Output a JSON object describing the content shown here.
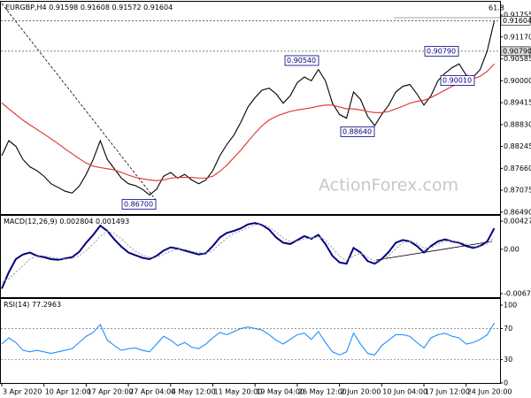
{
  "chart_data": [
    {
      "type": "line",
      "symbol": "EURGBP,H4",
      "ohlc": [
        0.91598,
        0.91608,
        0.91572,
        0.91604
      ],
      "fib_label": "61.8",
      "watermark": "ActionForex.com",
      "ylim": [
        0.8644,
        0.9211
      ],
      "yticks": [
        0.91755,
        {
          "value": 0.9117,
          "label": "0.91170"
        },
        0.90585,
        {
          "value": 0.9,
          "label": "0.90000"
        },
        0.89415,
        {
          "value": 0.8883,
          "label": "0.88830"
        },
        0.88245,
        {
          "value": 0.8766,
          "label": "0.87660"
        },
        0.87075,
        {
          "value": 0.8649,
          "label": "0.86490"
        }
      ],
      "price_marks": [
        {
          "value": 0.91604,
          "label": "0.91604"
        },
        {
          "value": 0.9079,
          "label": "0.90790"
        }
      ],
      "annotations": [
        {
          "value": 0.9054,
          "label": "0.90540"
        },
        {
          "value": 0.9079,
          "label": "0.90790"
        },
        {
          "value": 0.9001,
          "label": "0.90010"
        },
        {
          "value": 0.8864,
          "label": "0.88640"
        },
        {
          "value": 0.867,
          "label": "0.86700"
        }
      ],
      "series": [
        {
          "color": "#000000",
          "values": [
            0.88,
            0.884,
            0.8825,
            0.879,
            0.877,
            0.876,
            0.8745,
            0.8725,
            0.8715,
            0.8705,
            0.87,
            0.8718,
            0.875,
            0.879,
            0.884,
            0.879,
            0.8765,
            0.874,
            0.8725,
            0.872,
            0.871,
            0.8695,
            0.871,
            0.8745,
            0.8755,
            0.874,
            0.875,
            0.8735,
            0.8725,
            0.8735,
            0.876,
            0.88,
            0.883,
            0.8855,
            0.889,
            0.893,
            0.8955,
            0.8975,
            0.898,
            0.8965,
            0.894,
            0.896,
            0.8995,
            0.901,
            0.9,
            0.903,
            0.9,
            0.894,
            0.891,
            0.89,
            0.897,
            0.895,
            0.8905,
            0.888,
            0.891,
            0.8935,
            0.897,
            0.8985,
            0.899,
            0.8965,
            0.8935,
            0.896,
            0.9,
            0.902,
            0.9035,
            0.9045,
            0.9015,
            0.901,
            0.903,
            0.908,
            0.916
          ]
        },
        {
          "color": "#e03030",
          "values": [
            0.8941,
            0.8925,
            0.891,
            0.8895,
            0.8882,
            0.887,
            0.8858,
            0.8845,
            0.8832,
            0.8818,
            0.8805,
            0.8792,
            0.878,
            0.8772,
            0.8768,
            0.8765,
            0.8762,
            0.8755,
            0.8748,
            0.8742,
            0.8738,
            0.8735,
            0.8733,
            0.8735,
            0.874,
            0.8742,
            0.8742,
            0.8742,
            0.874,
            0.874,
            0.8745,
            0.8758,
            0.8775,
            0.8795,
            0.8815,
            0.8838,
            0.886,
            0.888,
            0.8895,
            0.8905,
            0.8912,
            0.8918,
            0.8922,
            0.8925,
            0.8928,
            0.8932,
            0.8935,
            0.8935,
            0.893,
            0.8925,
            0.8925,
            0.8922,
            0.8918,
            0.8915,
            0.8915,
            0.8918,
            0.8925,
            0.8932,
            0.894,
            0.8945,
            0.8948,
            0.8955,
            0.8965,
            0.8975,
            0.8985,
            0.8995,
            0.9,
            0.9005,
            0.9012,
            0.9025,
            0.9045
          ]
        }
      ]
    },
    {
      "type": "line",
      "title": "MACD(12,26,9)",
      "readings": [
        0.002804,
        0.001493
      ],
      "ylim": [
        -0.0073,
        0.0051
      ],
      "yticks": [
        0.004274,
        {
          "value": 0,
          "label": "0.00"
        },
        -0.006753
      ],
      "series": [
        {
          "color": "#000080",
          "values": [
            -0.006,
            -0.0035,
            -0.0015,
            -0.0008,
            -0.0005,
            -0.001,
            -0.0012,
            -0.0015,
            -0.0016,
            -0.0014,
            -0.0012,
            -0.0004,
            0.001,
            0.0022,
            0.0036,
            0.0028,
            0.0015,
            0.0004,
            -0.0005,
            -0.0009,
            -0.0013,
            -0.0015,
            -0.001,
            -0.0002,
            0.0003,
            0.0001,
            -0.0002,
            -0.0005,
            -0.0008,
            -0.0006,
            0.0005,
            0.0018,
            0.0025,
            0.0028,
            0.0032,
            0.0038,
            0.004,
            0.0037,
            0.003,
            0.0018,
            0.001,
            0.0008,
            0.0014,
            0.002,
            0.0016,
            0.0022,
            0.0008,
            -0.001,
            -0.002,
            -0.0022,
            0.0002,
            -0.0005,
            -0.0018,
            -0.0022,
            -0.0015,
            -0.0004,
            0.001,
            0.0014,
            0.0012,
            0.0005,
            -0.0005,
            0.0005,
            0.0012,
            0.0015,
            0.0012,
            0.001,
            0.0005,
            0.0002,
            0.0005,
            0.0012,
            0.0032
          ]
        },
        {
          "color": "#a0a0a0",
          "dashed": true,
          "values": [
            -0.005,
            -0.0045,
            -0.0035,
            -0.0025,
            -0.0015,
            -0.001,
            -0.001,
            -0.0012,
            -0.0014,
            -0.0015,
            -0.0014,
            -0.001,
            -0.0002,
            0.0008,
            0.002,
            0.0027,
            0.0024,
            0.0016,
            0.0006,
            -0.0003,
            -0.0009,
            -0.0012,
            -0.0012,
            -0.0008,
            -0.0003,
            0.0,
            0.0,
            -0.0003,
            -0.0005,
            -0.0006,
            -0.0002,
            0.0008,
            0.0017,
            0.0024,
            0.0028,
            0.0033,
            0.0037,
            0.0038,
            0.0034,
            0.0026,
            0.0017,
            0.0012,
            0.0012,
            0.0016,
            0.0017,
            0.0019,
            0.0014,
            0.0002,
            -0.001,
            -0.0018,
            -0.001,
            -0.0006,
            -0.0012,
            -0.0018,
            -0.0017,
            -0.001,
            0.0001,
            0.001,
            0.0012,
            0.0009,
            0.0002,
            0.0002,
            0.0008,
            0.0012,
            0.0013,
            0.0011,
            0.0008,
            0.0004,
            0.0004,
            0.0008,
            0.0018
          ]
        }
      ]
    },
    {
      "type": "line",
      "title": "RSI(14)",
      "readings": [
        77.2963
      ],
      "ylim": [
        0,
        108
      ],
      "yticks": [
        100,
        70,
        30,
        0
      ],
      "levels": [
        70,
        30
      ],
      "categories": [
        "3 Apr 2020",
        null,
        null,
        null,
        null,
        null,
        "10 Apr 12:00",
        null,
        null,
        null,
        null,
        null,
        "17 Apr 20:00",
        null,
        null,
        null,
        null,
        null,
        "27 Apr 04:00",
        null,
        null,
        null,
        null,
        null,
        "4 May 12:00",
        null,
        null,
        null,
        null,
        null,
        "11 May 20:00",
        null,
        null,
        null,
        null,
        null,
        "19 May 04:00",
        null,
        null,
        null,
        null,
        null,
        "26 May 12:00",
        null,
        null,
        null,
        null,
        null,
        "2 Jun 20:00",
        null,
        null,
        null,
        null,
        null,
        "10 Jun 04:00",
        null,
        null,
        null,
        null,
        null,
        "17 Jun 12:00",
        null,
        null,
        null,
        null,
        null,
        "24 Jun 20:00",
        null,
        null,
        null,
        null
      ],
      "series": [
        {
          "color": "#1e90ff",
          "values": [
            50,
            58,
            52,
            42,
            40,
            42,
            40,
            38,
            40,
            42,
            44,
            52,
            60,
            65,
            75,
            55,
            48,
            42,
            44,
            45,
            42,
            40,
            50,
            60,
            55,
            48,
            52,
            46,
            44,
            50,
            58,
            65,
            62,
            66,
            70,
            72,
            70,
            68,
            62,
            55,
            50,
            56,
            62,
            64,
            56,
            66,
            52,
            40,
            36,
            40,
            64,
            50,
            38,
            36,
            48,
            55,
            62,
            62,
            60,
            52,
            45,
            58,
            62,
            64,
            60,
            58,
            50,
            52,
            56,
            62,
            77
          ]
        }
      ]
    }
  ]
}
